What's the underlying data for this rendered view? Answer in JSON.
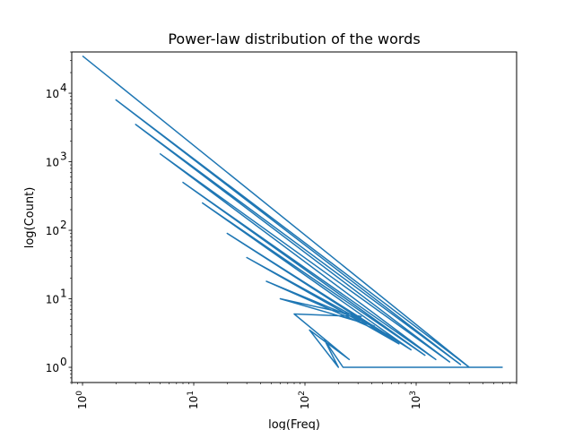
{
  "chart_data": {
    "type": "line",
    "title": "Power-law distribution of the words",
    "xlabel": "log(Freq)",
    "ylabel": "log(Count)",
    "xscale": "log",
    "yscale": "log",
    "xlim": [
      0.8,
      8000
    ],
    "ylim": [
      0.6,
      40000
    ],
    "xticks": [
      {
        "value": 1,
        "base": "10",
        "exp": "0"
      },
      {
        "value": 10,
        "base": "10",
        "exp": "1"
      },
      {
        "value": 100,
        "base": "10",
        "exp": "2"
      },
      {
        "value": 1000,
        "base": "10",
        "exp": "3"
      }
    ],
    "yticks": [
      {
        "value": 1,
        "base": "10",
        "exp": "0"
      },
      {
        "value": 10,
        "base": "10",
        "exp": "1"
      },
      {
        "value": 100,
        "base": "10",
        "exp": "2"
      },
      {
        "value": 1000,
        "base": "10",
        "exp": "3"
      },
      {
        "value": 10000,
        "base": "10",
        "exp": "4"
      }
    ],
    "grid": false,
    "series": [
      {
        "color": "#1f77b4",
        "x": [
          1,
          3000,
          2,
          2500,
          3,
          2000,
          5,
          1500,
          8,
          1200,
          12,
          900,
          20,
          700,
          30,
          550,
          45,
          420,
          60,
          320,
          80,
          250,
          110,
          200,
          150,
          220,
          3500,
          4000,
          5000,
          6000
        ],
        "y": [
          35000,
          1,
          8000,
          1.1,
          3500,
          1.2,
          1300,
          1.3,
          500,
          1.5,
          250,
          1.8,
          90,
          2.2,
          40,
          3,
          18,
          4,
          10,
          5.5,
          6,
          1.3,
          3.5,
          1,
          2.5,
          1,
          1,
          1,
          1,
          1
        ]
      }
    ]
  }
}
